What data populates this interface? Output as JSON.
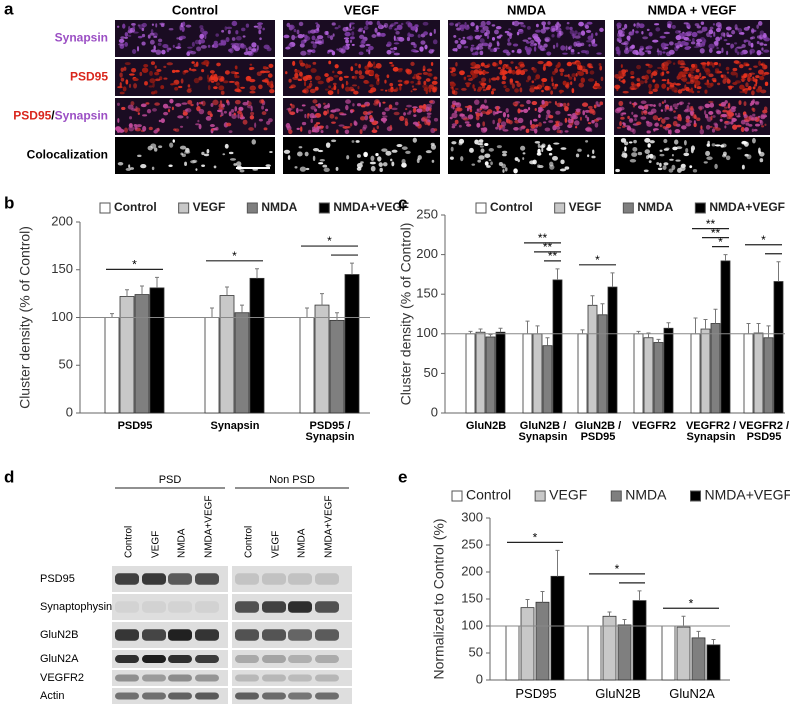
{
  "panel_a": {
    "panel": "a",
    "columns": [
      "Control",
      "VEGF",
      "NMDA",
      "NMDA + VEGF"
    ],
    "rows": [
      {
        "label_parts": [
          "Synapsin"
        ]
      },
      {
        "label_parts": [
          "PSD95"
        ]
      },
      {
        "label_parts": [
          "PSD95",
          "/",
          "Synapsin"
        ]
      },
      {
        "label_parts": [
          "Colocalization"
        ]
      }
    ]
  },
  "chart_data": [
    {
      "type": "bar",
      "panel": "b",
      "y_label": "Cluster density (% of Control)",
      "categories": [
        "PSD95",
        "Synapsin",
        "PSD95 / Synapsin"
      ],
      "series": [
        {
          "name": "Control",
          "color": "#ffffff",
          "values": [
            100,
            100,
            100
          ],
          "errors": [
            4,
            10,
            10
          ]
        },
        {
          "name": "VEGF",
          "color": "#c8c8c8",
          "values": [
            122,
            123,
            113
          ],
          "errors": [
            7,
            9,
            12
          ]
        },
        {
          "name": "NMDA",
          "color": "#7f7f7f",
          "values": [
            124,
            105,
            97
          ],
          "errors": [
            9,
            8,
            8
          ]
        },
        {
          "name": "NMDA+VEGF",
          "color": "#000000",
          "values": [
            131,
            141,
            145
          ],
          "errors": [
            11,
            10,
            12
          ]
        }
      ],
      "ylim": [
        0,
        200
      ],
      "yticks": [
        0,
        50,
        100,
        150,
        200
      ],
      "reference_line": 100,
      "significance": [
        {
          "category": 0,
          "from": 0,
          "to": 3,
          "label": "*"
        },
        {
          "category": 1,
          "from": 0,
          "to": 3,
          "label": "*"
        },
        {
          "category": 2,
          "from": 0,
          "to": 3,
          "label": "*"
        },
        {
          "category": 2,
          "from": 2,
          "to": 3,
          "label": ""
        }
      ]
    },
    {
      "type": "bar",
      "panel": "c",
      "y_label": "Cluster density (% of Control)",
      "categories": [
        "GluN2B",
        "GluN2B /\nSynapsin",
        "GluN2B /\nPSD95",
        "VEGFR2",
        "VEGFR2 /\nSynapsin",
        "VEGFR2 /\nPSD95"
      ],
      "series": [
        {
          "name": "Control",
          "color": "#ffffff",
          "values": [
            100,
            100,
            100,
            100,
            100,
            100
          ],
          "errors": [
            3,
            16,
            5,
            3,
            20,
            13
          ]
        },
        {
          "name": "VEGF",
          "color": "#c8c8c8",
          "values": [
            102,
            100,
            136,
            95,
            106,
            101
          ],
          "errors": [
            4,
            10,
            12,
            6,
            12,
            12
          ]
        },
        {
          "name": "NMDA",
          "color": "#7f7f7f",
          "values": [
            96,
            85,
            124,
            89,
            113,
            95
          ],
          "errors": [
            3,
            10,
            14,
            4,
            18,
            15
          ]
        },
        {
          "name": "NMDA+VEGF",
          "color": "#000000",
          "values": [
            102,
            168,
            159,
            107,
            192,
            166
          ],
          "errors": [
            5,
            14,
            18,
            7,
            8,
            25
          ]
        }
      ],
      "ylim": [
        0,
        250
      ],
      "yticks": [
        0,
        50,
        100,
        150,
        200,
        250
      ],
      "reference_line": 100,
      "significance": [
        {
          "category": 1,
          "from": 0,
          "to": 3,
          "label": "**"
        },
        {
          "category": 1,
          "from": 1,
          "to": 3,
          "label": "**"
        },
        {
          "category": 1,
          "from": 2,
          "to": 3,
          "label": "**"
        },
        {
          "category": 2,
          "from": 0,
          "to": 3,
          "label": "*"
        },
        {
          "category": 4,
          "from": 0,
          "to": 3,
          "label": "**"
        },
        {
          "category": 4,
          "from": 1,
          "to": 3,
          "label": "**"
        },
        {
          "category": 4,
          "from": 2,
          "to": 3,
          "label": "*"
        },
        {
          "category": 5,
          "from": 0,
          "to": 3,
          "label": "*"
        },
        {
          "category": 5,
          "from": 2,
          "to": 3,
          "label": ""
        }
      ]
    },
    {
      "type": "bar",
      "panel": "e",
      "y_label": "Normalized to Control (%)",
      "categories": [
        "PSD95",
        "GluN2B",
        "GluN2A"
      ],
      "series": [
        {
          "name": "Control",
          "color": "#ffffff",
          "values": [
            100,
            100,
            100
          ],
          "errors": [
            0,
            0,
            0
          ]
        },
        {
          "name": "VEGF",
          "color": "#c8c8c8",
          "values": [
            134,
            118,
            98
          ],
          "errors": [
            15,
            8,
            20
          ]
        },
        {
          "name": "NMDA",
          "color": "#7f7f7f",
          "values": [
            144,
            102,
            78
          ],
          "errors": [
            20,
            10,
            12
          ]
        },
        {
          "name": "NMDA+VEGF",
          "color": "#000000",
          "values": [
            192,
            147,
            65
          ],
          "errors": [
            48,
            18,
            10
          ]
        }
      ],
      "ylim": [
        0,
        300
      ],
      "yticks": [
        0,
        50,
        100,
        150,
        200,
        250,
        300
      ],
      "reference_line": 100,
      "significance": [
        {
          "category": 0,
          "from": 0,
          "to": 3,
          "label": "*"
        },
        {
          "category": 1,
          "from": 0,
          "to": 3,
          "label": "*"
        },
        {
          "category": 1,
          "from": 2,
          "to": 3,
          "label": ""
        },
        {
          "category": 2,
          "from": 0,
          "to": 3,
          "label": "*"
        }
      ]
    }
  ],
  "panel_d": {
    "panel": "d",
    "groups": [
      {
        "name": "PSD",
        "lanes": [
          "Control",
          "VEGF",
          "NMDA",
          "NMDA+VEGF"
        ]
      },
      {
        "name": "Non PSD",
        "lanes": [
          "Control",
          "VEGF",
          "NMDA",
          "NMDA+VEGF"
        ]
      }
    ],
    "rows": [
      "PSD95",
      "Synaptophysin",
      "GluN2B",
      "GluN2A",
      "VEGFR2",
      "Actin"
    ]
  }
}
